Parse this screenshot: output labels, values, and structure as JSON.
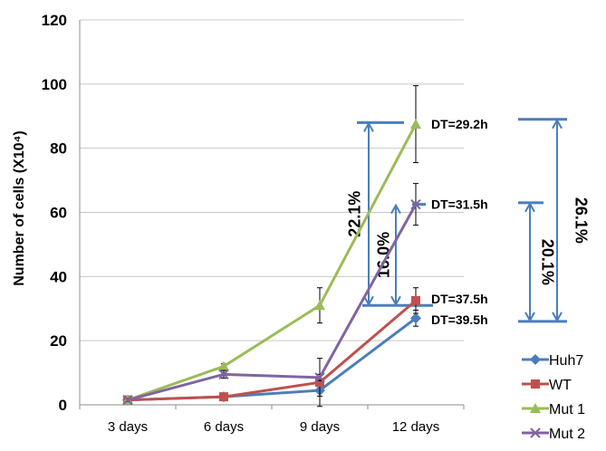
{
  "chart_data": {
    "type": "line",
    "ylabel": "Number of cells (X10⁴)",
    "xlabel": "",
    "categories": [
      "3 days",
      "6 days",
      "9 days",
      "12 days"
    ],
    "ylim": [
      0,
      120
    ],
    "yticks": [
      0,
      20,
      40,
      60,
      80,
      100,
      120
    ],
    "grid": true,
    "legend": "bottom-right",
    "series": [
      {
        "name": "Huh7",
        "color": "#4a7ebb",
        "marker": "diamond",
        "values": [
          1.5,
          2.5,
          4.5,
          27
        ],
        "errors": [
          0.5,
          0.6,
          1.8,
          2.5
        ]
      },
      {
        "name": "WT",
        "color": "#c0504d",
        "marker": "square",
        "values": [
          1.5,
          2.5,
          7,
          32.5
        ],
        "errors": [
          0.5,
          0.6,
          7.5,
          4.0
        ]
      },
      {
        "name": "Mut 1",
        "color": "#9bbb59",
        "marker": "triangle",
        "values": [
          1.5,
          12,
          31,
          87.5
        ],
        "errors": [
          0.5,
          0.8,
          5.5,
          12.0
        ]
      },
      {
        "name": "Mut 2",
        "color": "#8064a2",
        "marker": "x",
        "values": [
          1.5,
          9.5,
          8.5,
          62.5
        ],
        "errors": [
          0.5,
          1.2,
          1.0,
          6.5
        ]
      }
    ],
    "annotations": {
      "dt_labels": [
        {
          "text": "DT=29.2h",
          "y": 87.5
        },
        {
          "text": "DT=31.5h",
          "y": 62.5
        },
        {
          "text": "DT=37.5h",
          "y": 33
        },
        {
          "text": "DT=39.5h",
          "y": 26.5
        }
      ],
      "percent_brackets": [
        {
          "text": "22.1%",
          "y_from": 31,
          "y_to": 88
        },
        {
          "text": "16.0%",
          "y_from": 31,
          "y_to": 62.5
        },
        {
          "text": "26.1%",
          "y_from": 26,
          "y_to": 89
        },
        {
          "text": "20.1%",
          "y_from": 26,
          "y_to": 63
        }
      ],
      "bracket_color": "#4a7ebb"
    }
  }
}
